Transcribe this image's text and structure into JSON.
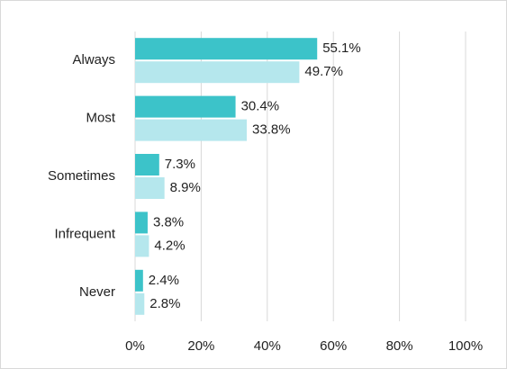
{
  "chart_data": {
    "type": "bar",
    "orientation": "horizontal",
    "categories": [
      "Always",
      "Most",
      "Sometimes",
      "Infrequent",
      "Never"
    ],
    "series": [
      {
        "color": "#3cc3c9",
        "values": [
          55.1,
          30.4,
          7.3,
          3.8,
          2.4
        ],
        "value_labels": [
          "55.1%",
          "30.4%",
          "7.3%",
          "3.8%",
          "2.4%"
        ]
      },
      {
        "color": "#b5e7ed",
        "values": [
          49.7,
          33.8,
          8.9,
          4.2,
          2.8
        ],
        "value_labels": [
          "49.7%",
          "33.8%",
          "8.9%",
          "4.2%",
          "2.8%"
        ]
      }
    ],
    "xlim": [
      0,
      100
    ],
    "xticks": [
      {
        "value": 0,
        "label": "0%"
      },
      {
        "value": 20,
        "label": "20%"
      },
      {
        "value": 40,
        "label": "40%"
      },
      {
        "value": 60,
        "label": "60%"
      },
      {
        "value": 80,
        "label": "80%"
      },
      {
        "value": 100,
        "label": "100%"
      }
    ],
    "grid": true
  }
}
